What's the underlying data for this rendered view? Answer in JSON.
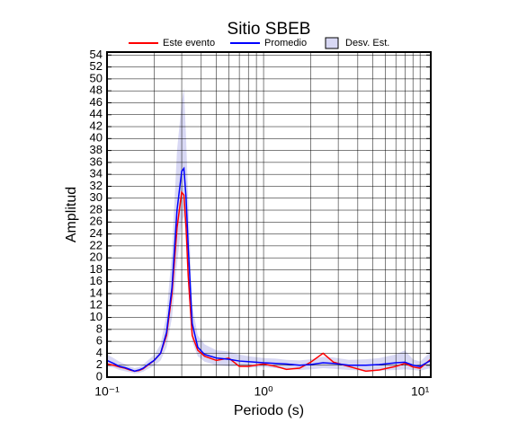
{
  "chart_data": {
    "type": "line",
    "title": "Sitio SBEB",
    "x_label": "Periodo (s)",
    "y_label": "Amplitud",
    "x_scale": "log",
    "grid": true,
    "xlim": [
      0.1,
      11.7
    ],
    "ylim": [
      0,
      54.5
    ],
    "xticks": [
      {
        "value": 0.1,
        "label": "10⁻¹"
      },
      {
        "value": 1,
        "label": "10⁰"
      },
      {
        "value": 10,
        "label": "10¹"
      }
    ],
    "xminorticks": [
      0.2,
      0.3,
      0.4,
      0.5,
      0.6,
      0.7,
      0.8,
      0.9,
      2,
      3,
      4,
      5,
      6,
      7,
      8,
      9
    ],
    "yticks": [
      0,
      2,
      4,
      6,
      8,
      10,
      12,
      14,
      16,
      18,
      20,
      22,
      24,
      26,
      28,
      30,
      32,
      34,
      36,
      38,
      40,
      42,
      44,
      46,
      48,
      50,
      52,
      54
    ],
    "x": [
      0.1,
      0.11,
      0.12,
      0.13,
      0.14,
      0.15,
      0.16,
      0.17,
      0.18,
      0.2,
      0.22,
      0.24,
      0.26,
      0.28,
      0.3,
      0.31,
      0.32,
      0.33,
      0.35,
      0.38,
      0.42,
      0.5,
      0.6,
      0.7,
      0.8,
      1.0,
      1.2,
      1.4,
      1.7,
      2.0,
      2.4,
      2.8,
      3.5,
      4.5,
      5.5,
      7,
      8,
      9,
      10,
      11.7
    ],
    "band": {
      "name": "Desv. Est.",
      "color": "#d8d8f4",
      "lower": [
        1.8,
        1.6,
        1.2,
        1.0,
        0.8,
        0.6,
        0.7,
        0.9,
        1.3,
        1.9,
        2.8,
        5,
        10,
        19,
        26,
        27,
        23,
        15,
        6,
        3.5,
        2.6,
        2,
        1.8,
        1.8,
        1.6,
        1.7,
        1.5,
        1.4,
        1.2,
        1.3,
        1.5,
        1.4,
        1.2,
        1.1,
        1.1,
        1.2,
        1.3,
        1.2,
        1.1,
        1.5
      ],
      "upper": [
        3.8,
        3.2,
        2.6,
        2.2,
        1.8,
        1.5,
        1.7,
        2.1,
        2.7,
        3.7,
        5.5,
        10.5,
        21,
        38,
        46,
        48.5,
        40,
        30,
        12,
        7,
        5.5,
        4.5,
        4.3,
        3.8,
        3.5,
        3.2,
        3.1,
        2.9,
        2.8,
        3,
        3.4,
        3.3,
        2.9,
        3,
        3.2,
        3.8,
        4.5,
        3,
        2.6,
        4.3
      ]
    },
    "series": [
      {
        "name": "Este evento",
        "color": "#ff0000",
        "values": [
          2.2,
          2,
          1.7,
          1.5,
          1.2,
          1.0,
          1.1,
          1.4,
          1.9,
          2.8,
          4,
          7,
          14,
          25,
          31,
          30.5,
          25,
          17,
          7,
          4.5,
          3.5,
          2.8,
          3.2,
          1.8,
          1.8,
          2.2,
          1.8,
          1.3,
          1.5,
          2.5,
          4,
          2.5,
          1.8,
          1,
          1.2,
          1.8,
          2.3,
          1.7,
          1.5,
          3
        ]
      },
      {
        "name": "Promedio",
        "color": "#0000ff",
        "values": [
          2.8,
          2.3,
          1.8,
          1.6,
          1.3,
          1.0,
          1.2,
          1.5,
          2,
          2.8,
          4,
          7.5,
          15,
          28,
          34.5,
          35,
          30,
          22,
          9,
          5,
          3.8,
          3.2,
          3,
          2.7,
          2.6,
          2.4,
          2.3,
          2.2,
          2.0,
          2.1,
          2.4,
          2.3,
          2,
          2,
          2.1,
          2.4,
          2.5,
          2.0,
          1.8,
          2.8
        ]
      }
    ]
  }
}
